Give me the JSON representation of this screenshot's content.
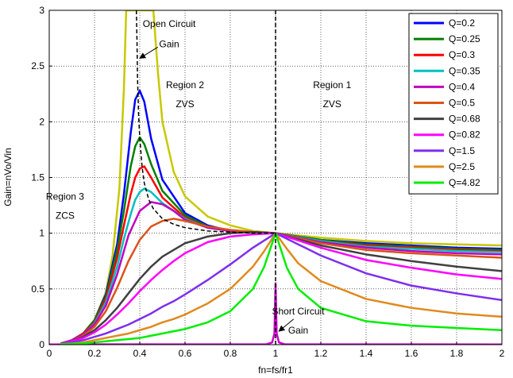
{
  "chart_data": {
    "type": "line",
    "xlabel": "fn=fs/fr1",
    "ylabel": "Gain=nVo/Vin",
    "xlim": [
      0,
      2
    ],
    "ylim": [
      0,
      3
    ],
    "xticks": [
      "0",
      "0.2",
      "0.4",
      "0.6",
      "0.8",
      "1",
      "1.2",
      "1.4",
      "1.6",
      "1.8",
      "2"
    ],
    "yticks": [
      "0",
      "0.5",
      "1",
      "1.5",
      "2",
      "2.5",
      "3"
    ],
    "grid": true,
    "legend_position": "top-right",
    "series": [
      {
        "name": "Q=0.2",
        "color": "#0000ff",
        "x": [
          0.05,
          0.1,
          0.15,
          0.2,
          0.25,
          0.3,
          0.33,
          0.36,
          0.38,
          0.4,
          0.42,
          0.45,
          0.5,
          0.6,
          0.7,
          0.8,
          0.9,
          1.0,
          1.2,
          1.4,
          1.6,
          1.8,
          2.0
        ],
        "y": [
          0.01,
          0.04,
          0.1,
          0.22,
          0.45,
          0.9,
          1.35,
          1.9,
          2.2,
          2.28,
          2.18,
          1.85,
          1.48,
          1.18,
          1.07,
          1.02,
          1.01,
          1.0,
          0.94,
          0.91,
          0.89,
          0.87,
          0.86
        ]
      },
      {
        "name": "Q=0.25",
        "color": "#008000",
        "x": [
          0.05,
          0.1,
          0.15,
          0.2,
          0.25,
          0.3,
          0.33,
          0.36,
          0.38,
          0.4,
          0.42,
          0.45,
          0.5,
          0.6,
          0.7,
          0.8,
          0.9,
          1.0,
          1.2,
          1.4,
          1.6,
          1.8,
          2.0
        ],
        "y": [
          0.01,
          0.04,
          0.1,
          0.22,
          0.43,
          0.85,
          1.2,
          1.6,
          1.78,
          1.86,
          1.8,
          1.62,
          1.38,
          1.16,
          1.06,
          1.02,
          1.01,
          1.0,
          0.94,
          0.9,
          0.88,
          0.86,
          0.85
        ]
      },
      {
        "name": "Q=0.3",
        "color": "#ff0000",
        "x": [
          0.05,
          0.1,
          0.15,
          0.2,
          0.25,
          0.3,
          0.33,
          0.36,
          0.38,
          0.4,
          0.42,
          0.45,
          0.5,
          0.6,
          0.7,
          0.8,
          0.9,
          1.0,
          1.2,
          1.4,
          1.6,
          1.8,
          2.0
        ],
        "y": [
          0.01,
          0.04,
          0.1,
          0.2,
          0.41,
          0.78,
          1.07,
          1.35,
          1.5,
          1.58,
          1.6,
          1.5,
          1.32,
          1.14,
          1.05,
          1.02,
          1.01,
          1.0,
          0.93,
          0.89,
          0.87,
          0.85,
          0.84
        ]
      },
      {
        "name": "Q=0.35",
        "color": "#00bfbf",
        "x": [
          0.05,
          0.1,
          0.15,
          0.2,
          0.25,
          0.3,
          0.33,
          0.36,
          0.38,
          0.4,
          0.42,
          0.45,
          0.5,
          0.6,
          0.7,
          0.8,
          0.9,
          1.0,
          1.2,
          1.4,
          1.6,
          1.8,
          2.0
        ],
        "y": [
          0.01,
          0.04,
          0.09,
          0.19,
          0.38,
          0.7,
          0.95,
          1.17,
          1.3,
          1.37,
          1.4,
          1.37,
          1.27,
          1.13,
          1.05,
          1.02,
          1.01,
          1.0,
          0.93,
          0.88,
          0.86,
          0.84,
          0.83
        ]
      },
      {
        "name": "Q=0.4",
        "color": "#bf00bf",
        "x": [
          0.05,
          0.1,
          0.15,
          0.2,
          0.25,
          0.3,
          0.35,
          0.4,
          0.45,
          0.5,
          0.55,
          0.6,
          0.7,
          0.8,
          0.9,
          1.0,
          1.2,
          1.4,
          1.6,
          1.8,
          2.0
        ],
        "y": [
          0.01,
          0.04,
          0.09,
          0.18,
          0.35,
          0.63,
          0.98,
          1.2,
          1.28,
          1.26,
          1.2,
          1.12,
          1.05,
          1.02,
          1.01,
          1.0,
          0.92,
          0.87,
          0.84,
          0.82,
          0.81
        ]
      },
      {
        "name": "Q=0.5",
        "color": "#d95319",
        "x": [
          0.05,
          0.1,
          0.15,
          0.2,
          0.25,
          0.3,
          0.35,
          0.4,
          0.45,
          0.5,
          0.55,
          0.6,
          0.7,
          0.8,
          0.9,
          1.0,
          1.2,
          1.4,
          1.6,
          1.8,
          2.0
        ],
        "y": [
          0.01,
          0.03,
          0.08,
          0.16,
          0.3,
          0.51,
          0.75,
          0.94,
          1.06,
          1.11,
          1.13,
          1.11,
          1.06,
          1.03,
          1.01,
          1.0,
          0.91,
          0.85,
          0.82,
          0.8,
          0.78
        ]
      },
      {
        "name": "Q=0.68",
        "color": "#404040",
        "x": [
          0.05,
          0.1,
          0.15,
          0.2,
          0.25,
          0.3,
          0.35,
          0.4,
          0.45,
          0.5,
          0.55,
          0.6,
          0.7,
          0.8,
          0.9,
          1.0,
          1.2,
          1.4,
          1.6,
          1.8,
          2.0
        ],
        "y": [
          0.01,
          0.03,
          0.07,
          0.13,
          0.22,
          0.33,
          0.46,
          0.59,
          0.7,
          0.79,
          0.85,
          0.91,
          0.97,
          1.0,
          1.01,
          1.0,
          0.89,
          0.81,
          0.75,
          0.7,
          0.66
        ]
      },
      {
        "name": "Q=0.82",
        "color": "#ff00ff",
        "x": [
          0.05,
          0.1,
          0.15,
          0.2,
          0.25,
          0.3,
          0.35,
          0.4,
          0.45,
          0.5,
          0.55,
          0.6,
          0.7,
          0.8,
          0.9,
          1.0,
          1.2,
          1.4,
          1.6,
          1.8,
          2.0
        ],
        "y": [
          0.01,
          0.03,
          0.06,
          0.11,
          0.18,
          0.27,
          0.37,
          0.48,
          0.58,
          0.67,
          0.75,
          0.82,
          0.92,
          0.97,
          0.99,
          1.0,
          0.87,
          0.76,
          0.69,
          0.63,
          0.59
        ]
      },
      {
        "name": "Q=1.5",
        "color": "#7e2fef",
        "x": [
          0.05,
          0.1,
          0.15,
          0.2,
          0.25,
          0.3,
          0.35,
          0.4,
          0.45,
          0.5,
          0.55,
          0.6,
          0.7,
          0.8,
          0.9,
          1.0,
          1.1,
          1.2,
          1.4,
          1.6,
          1.8,
          2.0
        ],
        "y": [
          0.01,
          0.02,
          0.04,
          0.07,
          0.1,
          0.14,
          0.18,
          0.23,
          0.28,
          0.34,
          0.39,
          0.45,
          0.58,
          0.72,
          0.87,
          1.0,
          0.9,
          0.8,
          0.64,
          0.53,
          0.46,
          0.4
        ]
      },
      {
        "name": "Q=2.5",
        "color": "#e08a1e",
        "x": [
          0.05,
          0.1,
          0.15,
          0.2,
          0.25,
          0.3,
          0.35,
          0.4,
          0.45,
          0.5,
          0.55,
          0.6,
          0.7,
          0.8,
          0.9,
          0.95,
          1.0,
          1.05,
          1.1,
          1.2,
          1.4,
          1.6,
          1.8,
          2.0
        ],
        "y": [
          0.005,
          0.01,
          0.02,
          0.04,
          0.06,
          0.08,
          0.1,
          0.13,
          0.16,
          0.2,
          0.23,
          0.27,
          0.37,
          0.5,
          0.7,
          0.84,
          1.0,
          0.86,
          0.73,
          0.57,
          0.41,
          0.33,
          0.28,
          0.25
        ]
      },
      {
        "name": "Q=4.82",
        "color": "#00ee00",
        "x": [
          0.05,
          0.1,
          0.15,
          0.2,
          0.25,
          0.3,
          0.35,
          0.4,
          0.45,
          0.5,
          0.55,
          0.6,
          0.7,
          0.8,
          0.9,
          0.95,
          1.0,
          1.05,
          1.1,
          1.2,
          1.4,
          1.6,
          1.8,
          2.0
        ],
        "y": [
          0.003,
          0.006,
          0.01,
          0.02,
          0.03,
          0.04,
          0.05,
          0.06,
          0.08,
          0.1,
          0.12,
          0.14,
          0.2,
          0.3,
          0.5,
          0.7,
          1.0,
          0.69,
          0.5,
          0.33,
          0.21,
          0.17,
          0.15,
          0.13
        ]
      }
    ],
    "extra_lines": [
      {
        "kind": "open-circuit-gain",
        "color": "#c8c800",
        "dash": false,
        "x": [
          0.05,
          0.1,
          0.15,
          0.2,
          0.25,
          0.28,
          0.31,
          0.33,
          0.34,
          0.46,
          0.48,
          0.5,
          0.55,
          0.6,
          0.7,
          0.8,
          0.9,
          1.0,
          1.2,
          1.4,
          1.6,
          1.8,
          2.0
        ],
        "y": [
          0.01,
          0.04,
          0.1,
          0.22,
          0.47,
          0.8,
          1.4,
          2.3,
          3.0,
          3.0,
          2.45,
          2.0,
          1.55,
          1.33,
          1.15,
          1.07,
          1.02,
          1.0,
          0.96,
          0.93,
          0.91,
          0.9,
          0.89
        ]
      },
      {
        "kind": "short-circuit-gain",
        "color": "#cc00cc",
        "dash": false,
        "x": [
          0,
          0.96,
          0.985,
          0.995,
          1.0,
          1.005,
          1.015,
          1.04,
          2.0
        ],
        "y": [
          0.002,
          0.003,
          0.02,
          0.1,
          0.55,
          0.1,
          0.02,
          0.003,
          0.002
        ]
      },
      {
        "kind": "peak-gain-locus",
        "color": "#000000",
        "dash": true,
        "x": [
          0.385,
          0.388,
          0.39,
          0.395,
          0.4,
          0.41,
          0.42,
          0.44,
          0.46,
          0.5,
          0.55,
          0.6,
          0.7,
          0.8,
          0.9,
          1.0
        ],
        "y": [
          3.0,
          2.7,
          2.4,
          2.05,
          1.86,
          1.6,
          1.45,
          1.3,
          1.22,
          1.13,
          1.08,
          1.05,
          1.02,
          1.01,
          1.0,
          1.0
        ]
      },
      {
        "kind": "boundary",
        "color": "#000000",
        "dash": true,
        "x": [
          1.0,
          1.0
        ],
        "y": [
          0,
          3
        ]
      }
    ],
    "annotations": [
      {
        "id": "open-circuit-line1",
        "text": "Open Circuit",
        "x": 0.53,
        "y": 2.85
      },
      {
        "id": "open-circuit-line2",
        "text": "Gain",
        "x": 0.53,
        "y": 2.67
      },
      {
        "id": "region2-line1",
        "text": "Region 2",
        "x": 0.6,
        "y": 2.3
      },
      {
        "id": "region2-line2",
        "text": "ZVS",
        "x": 0.6,
        "y": 2.13
      },
      {
        "id": "region1-line1",
        "text": "Region 1",
        "x": 1.25,
        "y": 2.3
      },
      {
        "id": "region1-line2",
        "text": "ZVS",
        "x": 1.25,
        "y": 2.13
      },
      {
        "id": "region3-line1",
        "text": "Region 3",
        "x": 0.07,
        "y": 1.3
      },
      {
        "id": "region3-line2",
        "text": "ZCS",
        "x": 0.07,
        "y": 1.13
      },
      {
        "id": "short-circuit-line1",
        "text": "Short Circuit",
        "x": 1.1,
        "y": 0.27
      },
      {
        "id": "short-circuit-line2",
        "text": "Gain",
        "x": 1.1,
        "y": 0.1
      }
    ],
    "arrows": [
      {
        "id": "open-circuit-arrow",
        "from": [
          0.48,
          2.67
        ],
        "to": [
          0.4,
          2.57
        ]
      },
      {
        "id": "short-circuit-arrow",
        "from": [
          1.08,
          0.23
        ],
        "to": [
          1.015,
          0.12
        ]
      }
    ]
  }
}
